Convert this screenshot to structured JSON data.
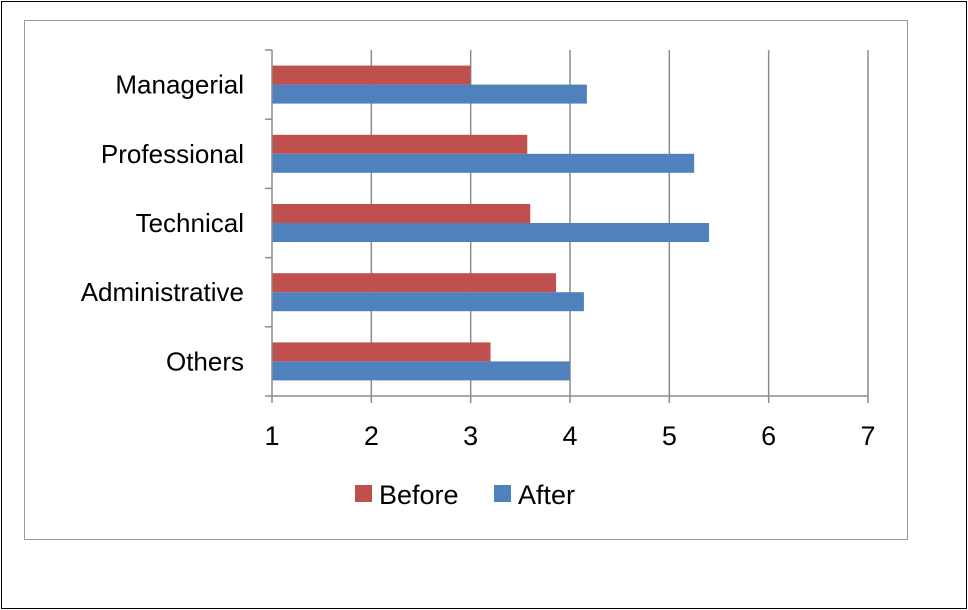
{
  "chart_data": {
    "type": "bar",
    "orientation": "horizontal",
    "categories": [
      "Managerial",
      "Professional",
      "Technical",
      "Administrative",
      "Others"
    ],
    "series": [
      {
        "name": "Before",
        "color": "#c0504d",
        "values": [
          3.0,
          3.57,
          3.6,
          3.86,
          3.2
        ]
      },
      {
        "name": "After",
        "color": "#4f81bd",
        "values": [
          4.17,
          5.25,
          5.4,
          4.14,
          4.0
        ]
      }
    ],
    "xlim": [
      1,
      7
    ],
    "x_ticks": [
      "1",
      "2",
      "3",
      "4",
      "5",
      "6",
      "7"
    ],
    "grid": true,
    "legend_position": "bottom"
  }
}
